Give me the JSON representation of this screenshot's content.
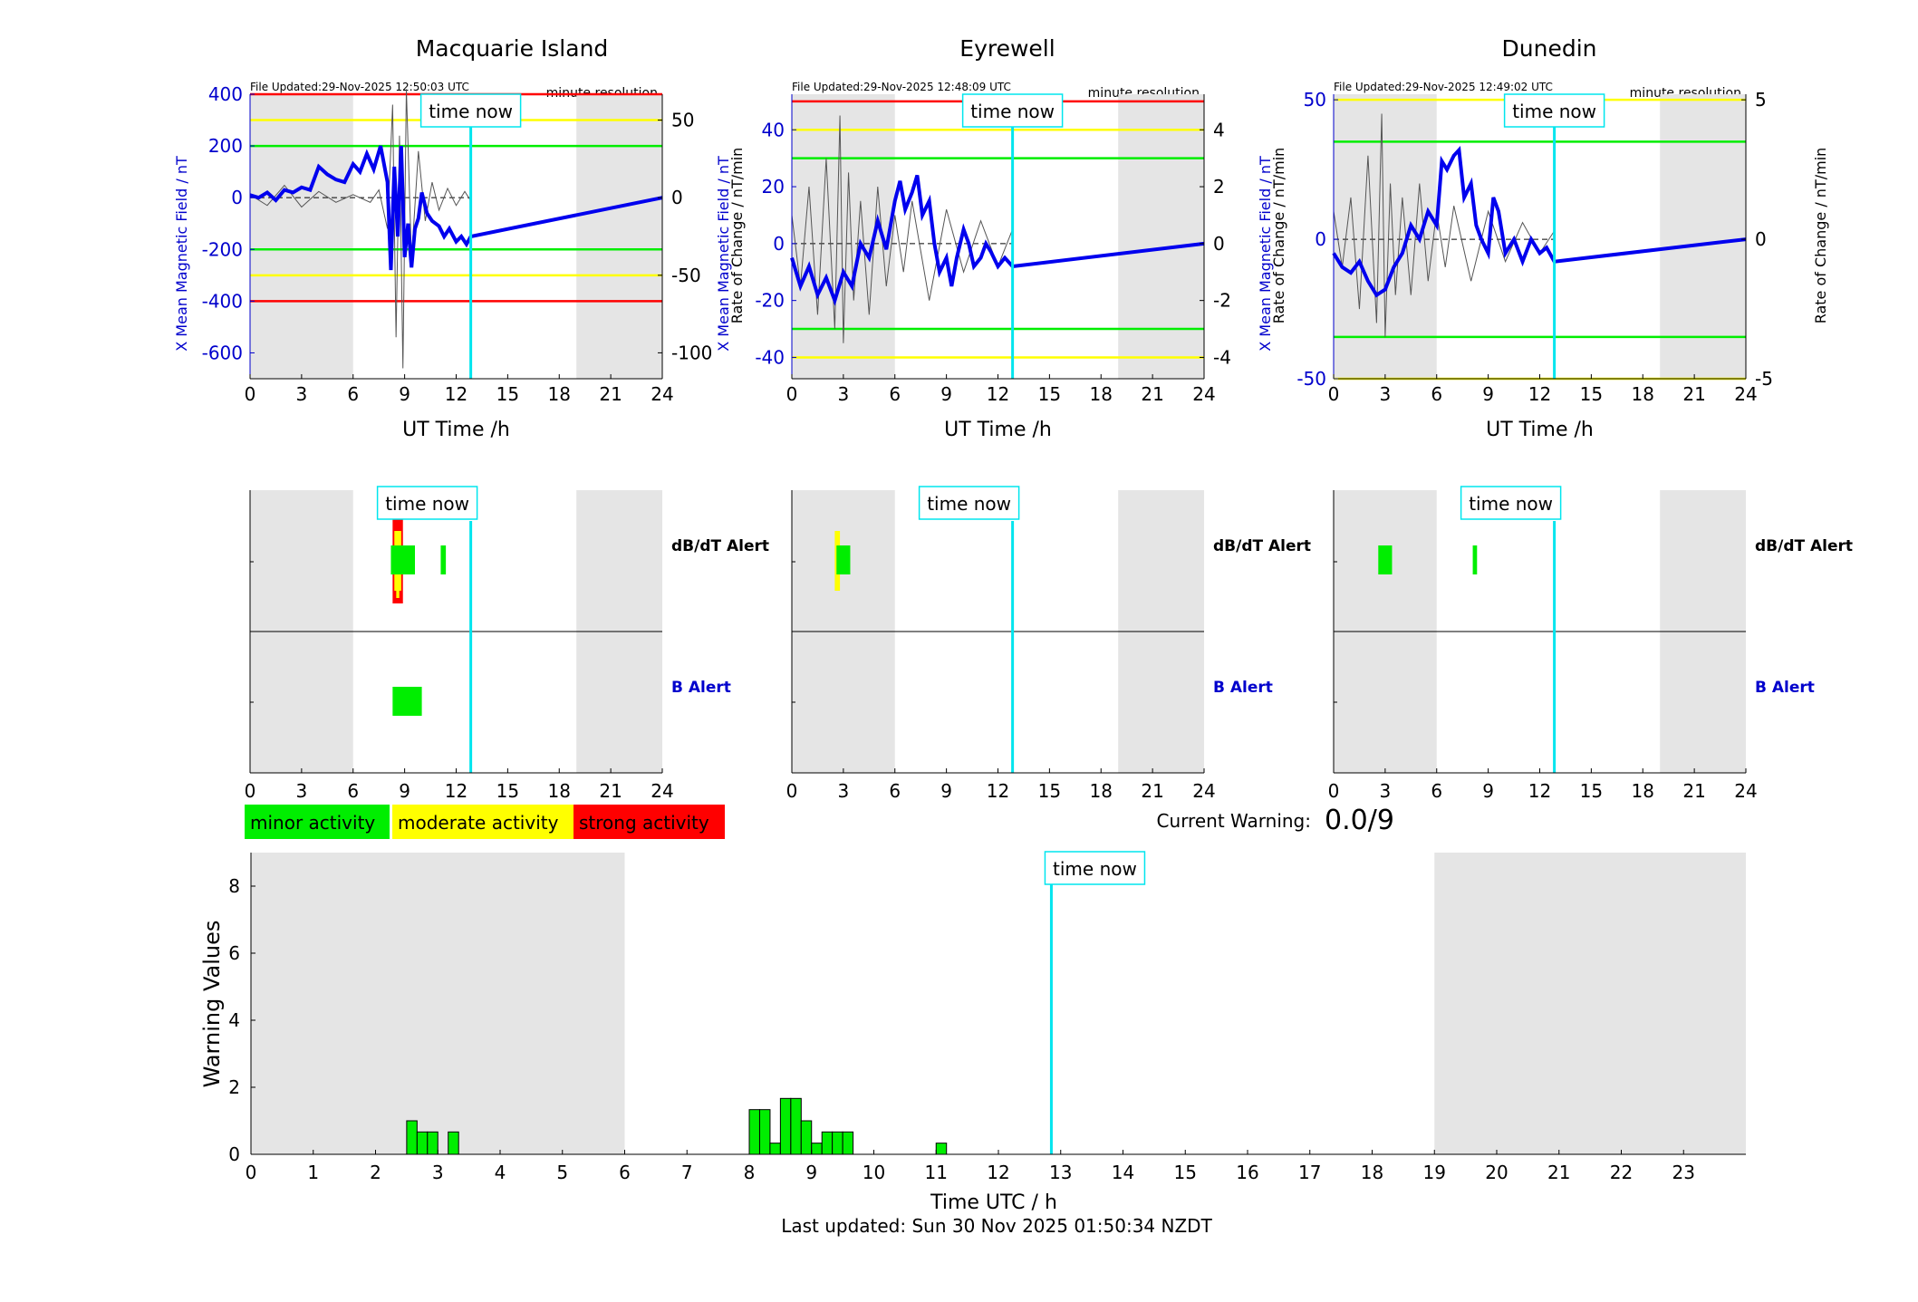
{
  "colors": {
    "night_shade": "#e5e5e5",
    "mean_field": "#0000ee",
    "rate_of_change": "#555555",
    "now_line": "#00e5ee",
    "minor": "#00ee00",
    "moderate": "#ffff00",
    "strong": "#ff0000",
    "axis_blue": "#0000cc"
  },
  "labels": {
    "time_now": "time now",
    "minute_resolution": "minute resolution",
    "ut_axis": "UT Time /h",
    "y_left_label": "X Mean Magnetic Field / nT",
    "y_right_label": "Rate of Change / nT/min",
    "dbdt_alert": "dB/dT Alert",
    "b_alert": "B Alert",
    "current_warning_label": "Current Warning:",
    "current_warning_value": "0.0/9",
    "warning_ylabel": "Warning Values",
    "warning_xlabel": "Time UTC / h",
    "last_updated": "Last updated: Sun 30 Nov 2025 01:50:34 NZDT"
  },
  "legend": [
    {
      "key": "minor",
      "label": "minor activity"
    },
    {
      "key": "moderate",
      "label": "moderate activity"
    },
    {
      "key": "strong",
      "label": "strong activity"
    }
  ],
  "chart_data": [
    {
      "type": "line",
      "title": "Macquarie Island",
      "file_updated": "File Updated:29-Nov-2025 12:50:03 UTC",
      "xlabel": "UT Time /h",
      "ylabel": "X Mean Magnetic Field / nT",
      "y2label": "Rate of Change / nT/min",
      "xlim": [
        0,
        24
      ],
      "xticks": [
        0,
        3,
        6,
        9,
        12,
        15,
        18,
        21,
        24
      ],
      "ylim": [
        -700,
        400
      ],
      "yticks": [
        400,
        200,
        0,
        -200,
        -400,
        -600
      ],
      "y2lim": [
        -116.7,
        66.7
      ],
      "y2ticks": [
        50,
        0,
        -50,
        -100
      ],
      "shaded_hours": [
        [
          0,
          6
        ],
        [
          19,
          24
        ]
      ],
      "now_hour": 12.85,
      "thresholds": [
        {
          "value": 400,
          "level": "strong"
        },
        {
          "value": -400,
          "level": "strong"
        },
        {
          "value": 300,
          "level": "moderate"
        },
        {
          "value": -300,
          "level": "moderate"
        },
        {
          "value": 200,
          "level": "minor"
        },
        {
          "value": -200,
          "level": "minor"
        }
      ],
      "mean_field": {
        "x": [
          0,
          0.5,
          1,
          1.5,
          2,
          2.5,
          3,
          3.5,
          4,
          4.5,
          5,
          5.5,
          6,
          6.4,
          6.8,
          7.2,
          7.6,
          8,
          8.2,
          8.4,
          8.6,
          8.8,
          9,
          9.2,
          9.4,
          9.6,
          9.8,
          10,
          10.3,
          10.6,
          11,
          11.3,
          11.6,
          12,
          12.3,
          12.6,
          12.85,
          24
        ],
        "y": [
          10,
          0,
          20,
          -10,
          30,
          20,
          40,
          30,
          120,
          90,
          70,
          60,
          130,
          100,
          170,
          110,
          200,
          60,
          -280,
          120,
          -150,
          200,
          -230,
          -100,
          -270,
          -120,
          -80,
          20,
          -60,
          -90,
          -110,
          -150,
          -120,
          -170,
          -150,
          -180,
          -150,
          0
        ]
      },
      "rate_of_change": {
        "x": [
          0,
          1,
          2,
          3,
          4,
          5,
          6,
          7,
          7.5,
          8,
          8.3,
          8.5,
          8.7,
          8.9,
          9.1,
          9.4,
          9.8,
          10.2,
          10.6,
          11,
          11.5,
          12,
          12.5,
          12.85
        ],
        "y": [
          2,
          -5,
          8,
          -6,
          4,
          -3,
          2,
          -3,
          5,
          -20,
          60,
          -90,
          40,
          -110,
          70,
          -40,
          30,
          -15,
          10,
          -8,
          6,
          -5,
          4,
          -2
        ]
      },
      "dbdt_alerts": [
        {
          "start": 8.3,
          "end": 8.9,
          "level": "strong"
        },
        {
          "start": 8.4,
          "end": 8.8,
          "level": "moderate"
        },
        {
          "start": 8.2,
          "end": 9.6,
          "level": "minor"
        },
        {
          "start": 11.1,
          "end": 11.4,
          "level": "minor"
        }
      ],
      "b_alerts": [
        {
          "start": 8.3,
          "end": 10.0,
          "level": "minor"
        }
      ]
    },
    {
      "type": "line",
      "title": "Eyrewell",
      "file_updated": "File Updated:29-Nov-2025 12:48:09 UTC",
      "xlabel": "UT Time /h",
      "ylabel": "X Mean Magnetic Field / nT",
      "y2label": "Rate of Change / nT/min",
      "xlim": [
        0,
        24
      ],
      "xticks": [
        0,
        3,
        6,
        9,
        12,
        15,
        18,
        21,
        24
      ],
      "ylim": [
        -47.5,
        52.5
      ],
      "yticks": [
        40,
        20,
        0,
        -20,
        -40
      ],
      "y2lim": [
        -4.75,
        5.25
      ],
      "y2ticks": [
        4,
        2,
        0,
        -2,
        -4
      ],
      "shaded_hours": [
        [
          0,
          6
        ],
        [
          19,
          24
        ]
      ],
      "now_hour": 12.85,
      "thresholds": [
        {
          "value": 50,
          "level": "strong"
        },
        {
          "value": 40,
          "level": "moderate"
        },
        {
          "value": -40,
          "level": "moderate"
        },
        {
          "value": 30,
          "level": "minor"
        },
        {
          "value": -30,
          "level": "minor"
        }
      ],
      "mean_field": {
        "x": [
          0,
          0.5,
          1,
          1.5,
          2,
          2.5,
          3,
          3.5,
          4,
          4.5,
          5,
          5.5,
          6,
          6.3,
          6.6,
          7,
          7.3,
          7.6,
          8,
          8.3,
          8.6,
          9,
          9.3,
          9.6,
          10,
          10.3,
          10.6,
          11,
          11.3,
          11.6,
          12,
          12.4,
          12.85,
          24
        ],
        "y": [
          -5,
          -15,
          -8,
          -18,
          -12,
          -20,
          -10,
          -15,
          0,
          -5,
          8,
          -2,
          15,
          22,
          12,
          18,
          24,
          10,
          15,
          0,
          -10,
          -5,
          -15,
          -5,
          5,
          0,
          -8,
          -5,
          0,
          -3,
          -8,
          -5,
          -8,
          0
        ]
      },
      "rate_of_change": {
        "x": [
          0,
          0.5,
          1,
          1.5,
          2,
          2.5,
          2.8,
          3,
          3.3,
          3.6,
          4,
          4.5,
          5,
          5.5,
          6,
          6.5,
          7,
          8,
          9,
          10,
          11,
          12,
          12.85
        ],
        "y": [
          1,
          -1.5,
          2,
          -2.5,
          3,
          -3,
          4.5,
          -3.5,
          2.5,
          -2,
          1.5,
          -2.5,
          2,
          -1.5,
          1,
          -1,
          1.5,
          -2,
          1.2,
          -1,
          0.8,
          -0.8,
          0.5
        ]
      },
      "dbdt_alerts": [
        {
          "start": 2.5,
          "end": 2.8,
          "level": "moderate"
        },
        {
          "start": 2.6,
          "end": 3.4,
          "level": "minor"
        }
      ],
      "b_alerts": []
    },
    {
      "type": "line",
      "title": "Dunedin",
      "file_updated": "File Updated:29-Nov-2025 12:49:02 UTC",
      "xlabel": "UT Time /h",
      "ylabel": "X Mean Magnetic Field / nT",
      "y2label": "Rate of Change / nT/min",
      "xlim": [
        0,
        24
      ],
      "xticks": [
        0,
        3,
        6,
        9,
        12,
        15,
        18,
        21,
        24
      ],
      "ylim": [
        -50,
        52
      ],
      "yticks": [
        50,
        0,
        -50
      ],
      "y2lim": [
        -5,
        5.2
      ],
      "y2ticks": [
        5,
        0,
        -5
      ],
      "shaded_hours": [
        [
          0,
          6
        ],
        [
          19,
          24
        ]
      ],
      "now_hour": 12.85,
      "thresholds": [
        {
          "value": 50,
          "level": "moderate"
        },
        {
          "value": -50,
          "level": "moderate"
        },
        {
          "value": 35,
          "level": "minor"
        },
        {
          "value": -35,
          "level": "minor"
        }
      ],
      "mean_field": {
        "x": [
          0,
          0.5,
          1,
          1.5,
          2,
          2.5,
          3,
          3.5,
          4,
          4.5,
          5,
          5.5,
          6,
          6.3,
          6.6,
          7,
          7.3,
          7.6,
          8,
          8.3,
          8.6,
          9,
          9.3,
          9.6,
          10,
          10.5,
          11,
          11.5,
          12,
          12.4,
          12.85,
          24
        ],
        "y": [
          -5,
          -10,
          -12,
          -8,
          -15,
          -20,
          -18,
          -10,
          -5,
          5,
          0,
          10,
          5,
          28,
          25,
          30,
          32,
          15,
          20,
          5,
          0,
          -5,
          15,
          10,
          -5,
          0,
          -8,
          0,
          -5,
          -3,
          -8,
          0
        ]
      },
      "rate_of_change": {
        "x": [
          0,
          0.5,
          1,
          1.5,
          2,
          2.5,
          2.8,
          3,
          3.3,
          3.6,
          4,
          4.5,
          5,
          5.5,
          6,
          6.5,
          7,
          8,
          9,
          10,
          11,
          12,
          12.85
        ],
        "y": [
          1,
          -1,
          1.5,
          -2.5,
          3,
          -3,
          4.5,
          -3.5,
          2,
          -2,
          1.5,
          -2,
          2,
          -1.5,
          1,
          -1,
          1.2,
          -1.5,
          1,
          -0.8,
          0.6,
          -0.5,
          0.3
        ]
      },
      "dbdt_alerts": [
        {
          "start": 2.6,
          "end": 3.4,
          "level": "minor"
        },
        {
          "start": 8.1,
          "end": 8.35,
          "level": "minor"
        }
      ],
      "b_alerts": []
    },
    {
      "type": "bar",
      "title": "",
      "xlabel": "Time UTC / h",
      "ylabel": "Warning Values",
      "xlim": [
        0,
        24
      ],
      "xticks": [
        0,
        1,
        2,
        3,
        4,
        5,
        6,
        7,
        8,
        9,
        10,
        11,
        12,
        13,
        14,
        15,
        16,
        17,
        18,
        19,
        20,
        21,
        22,
        23
      ],
      "ylim": [
        0,
        9
      ],
      "yticks": [
        0,
        2,
        4,
        6,
        8
      ],
      "shaded_hours": [
        [
          0,
          6
        ],
        [
          19,
          24
        ]
      ],
      "now_hour": 12.85,
      "bar_width_h": 0.1667,
      "bars": [
        {
          "x": 2.5,
          "y": 1.0
        },
        {
          "x": 2.667,
          "y": 0.667
        },
        {
          "x": 2.833,
          "y": 0.667
        },
        {
          "x": 3.167,
          "y": 0.667
        },
        {
          "x": 8.0,
          "y": 1.333
        },
        {
          "x": 8.167,
          "y": 1.333
        },
        {
          "x": 8.333,
          "y": 0.333
        },
        {
          "x": 8.5,
          "y": 1.667
        },
        {
          "x": 8.667,
          "y": 1.667
        },
        {
          "x": 8.833,
          "y": 1.0
        },
        {
          "x": 9.0,
          "y": 0.333
        },
        {
          "x": 9.167,
          "y": 0.667
        },
        {
          "x": 9.333,
          "y": 0.667
        },
        {
          "x": 9.5,
          "y": 0.667
        },
        {
          "x": 11.0,
          "y": 0.333
        }
      ]
    }
  ]
}
